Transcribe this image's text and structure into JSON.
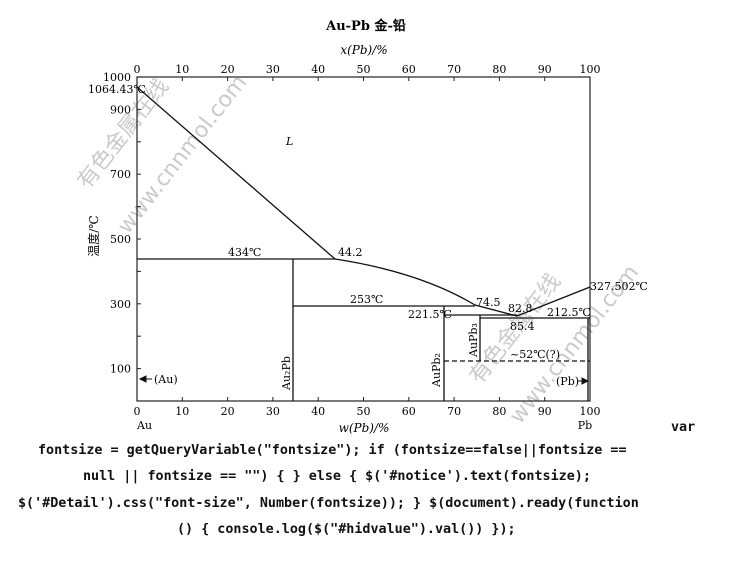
{
  "diagram": {
    "title": "Au-Pb  金-铅",
    "top_axis_label": "x(Pb)/%",
    "bottom_axis_label": "w(Pb)/%",
    "y_axis_label": "温度/℃",
    "x_ticks": [
      "0",
      "10",
      "20",
      "30",
      "40",
      "50",
      "60",
      "70",
      "80",
      "90",
      "100"
    ],
    "top_ticks": [
      "0",
      "10",
      "20",
      "30",
      "40",
      "50",
      "60",
      "70",
      "80",
      "90",
      "100"
    ],
    "y_ticks": [
      "1000",
      "900",
      "700",
      "500",
      "300",
      "100"
    ],
    "left_element": "Au",
    "right_element": "Pb",
    "labels": {
      "au_melt": "1064.43℃",
      "liquid": "L",
      "eut_434": "434℃",
      "comp_442": "44.2",
      "peri_253": "253℃",
      "comp_745": "74.5",
      "comp_828": "82.8",
      "peri_2215": "221.5℃",
      "eut_2125": "212.5℃",
      "comp_854": "85.4",
      "pb_melt": "327.502℃",
      "au2pb": "Au₂Pb",
      "aupb2": "AuPb₂",
      "aupb3": "AuPb₃",
      "transition": "~52℃(?)",
      "au_phase": "(Au)",
      "pb_phase": "(Pb)"
    },
    "watermark": [
      "有色金属在线",
      "www.cnnmol.com"
    ]
  },
  "chart_data": {
    "type": "line",
    "title": "Au-Pb  金-铅",
    "xlabel": "w(Pb)/%",
    "ylabel": "温度/℃",
    "xlim": [
      0,
      100
    ],
    "ylim": [
      0,
      1000
    ],
    "series": [
      {
        "values": [
          [
            0,
            1064.43
          ],
          [
            44.2,
            434
          ]
        ]
      },
      {
        "values": [
          [
            44.2,
            434
          ],
          [
            74.5,
            253
          ],
          [
            82.8,
            221.5
          ],
          [
            85.4,
            212.5
          ]
        ]
      },
      {
        "values": [
          [
            85.4,
            212.5
          ],
          [
            100,
            327.502
          ]
        ]
      }
    ]
  },
  "code_lines": [
    "var",
    "fontsize = getQueryVariable(\"fontsize\"); if (fontsize==false||fontsize ==",
    "null || fontsize == \"\") { } else { $('#notice').text(fontsize);",
    "$('#Detail').css(\"font-size\", Number(fontsize)); } $(document).ready(function",
    "() { console.log($(\"#hidvalue\").val()) });"
  ]
}
